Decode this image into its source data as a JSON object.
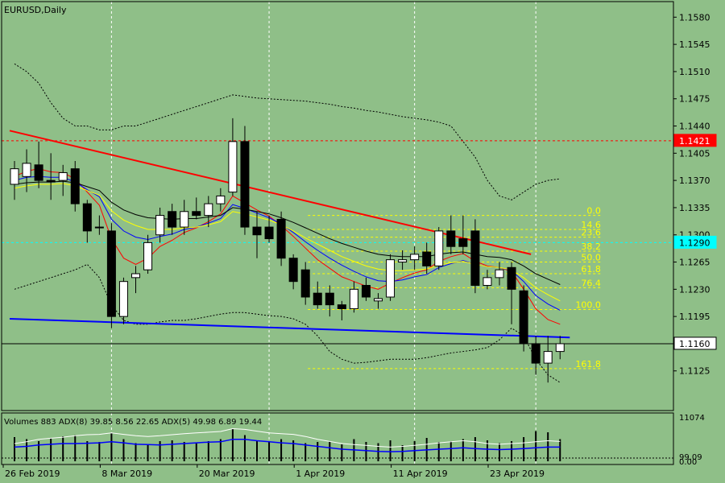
{
  "chart_data": {
    "type": "candlestick",
    "symbol_label": "EURUSD,Daily",
    "y_axis": {
      "ylim": [
        1.1074,
        1.16
      ],
      "tick_labels": [
        "1.1580",
        "1.1545",
        "1.1510",
        "1.1475",
        "1.1440",
        "1.1405",
        "1.1370",
        "1.1335",
        "1.1300",
        "1.1265",
        "1.1230",
        "1.1195",
        "1.1160",
        "1.1125"
      ],
      "tick_values": [
        1.158,
        1.1545,
        1.151,
        1.1475,
        1.144,
        1.1405,
        1.137,
        1.1335,
        1.13,
        1.1265,
        1.123,
        1.1195,
        1.116,
        1.1125
      ]
    },
    "x_axis": {
      "date_labels": [
        "26 Feb 2019",
        "8 Mar 2019",
        "20 Mar 2019",
        "1 Apr 2019",
        "11 Apr 2019",
        "23 Apr 2019"
      ],
      "label_bar_index": [
        0,
        8,
        16,
        24,
        32,
        40
      ]
    },
    "price_markers": [
      {
        "label": "1.1421",
        "value": 1.1421,
        "color": "#ff0000",
        "text_color": "#ffffff"
      },
      {
        "label": "1.1290",
        "value": 1.129,
        "color": "#00ffff",
        "text_color": "#000000"
      },
      {
        "label": "1.1160",
        "value": 1.116,
        "color": "#ffffff",
        "text_color": "#000000"
      }
    ],
    "candles": [
      {
        "date": "2019-02-25",
        "o": 1.1365,
        "h": 1.1395,
        "l": 1.1345,
        "c": 1.1385
      },
      {
        "date": "2019-02-26",
        "o": 1.1375,
        "h": 1.141,
        "l": 1.1355,
        "c": 1.1392
      },
      {
        "date": "2019-02-27",
        "o": 1.139,
        "h": 1.142,
        "l": 1.136,
        "c": 1.137
      },
      {
        "date": "2019-02-28",
        "o": 1.137,
        "h": 1.1405,
        "l": 1.1345,
        "c": 1.1368
      },
      {
        "date": "2019-03-01",
        "o": 1.137,
        "h": 1.139,
        "l": 1.135,
        "c": 1.138
      },
      {
        "date": "2019-03-04",
        "o": 1.1385,
        "h": 1.1395,
        "l": 1.133,
        "c": 1.134
      },
      {
        "date": "2019-03-05",
        "o": 1.134,
        "h": 1.1345,
        "l": 1.129,
        "c": 1.1305
      },
      {
        "date": "2019-03-06",
        "o": 1.131,
        "h": 1.1325,
        "l": 1.13,
        "c": 1.131
      },
      {
        "date": "2019-03-07",
        "o": 1.1305,
        "h": 1.1315,
        "l": 1.118,
        "c": 1.1195
      },
      {
        "date": "2019-03-08",
        "o": 1.1195,
        "h": 1.1245,
        "l": 1.1185,
        "c": 1.124
      },
      {
        "date": "2019-03-11",
        "o": 1.1245,
        "h": 1.126,
        "l": 1.1225,
        "c": 1.125
      },
      {
        "date": "2019-03-12",
        "o": 1.1255,
        "h": 1.13,
        "l": 1.125,
        "c": 1.129
      },
      {
        "date": "2019-03-13",
        "o": 1.13,
        "h": 1.1335,
        "l": 1.129,
        "c": 1.1325
      },
      {
        "date": "2019-03-14",
        "o": 1.133,
        "h": 1.134,
        "l": 1.13,
        "c": 1.131
      },
      {
        "date": "2019-03-15",
        "o": 1.131,
        "h": 1.1345,
        "l": 1.13,
        "c": 1.133
      },
      {
        "date": "2019-03-18",
        "o": 1.133,
        "h": 1.1348,
        "l": 1.132,
        "c": 1.1325
      },
      {
        "date": "2019-03-19",
        "o": 1.1325,
        "h": 1.135,
        "l": 1.131,
        "c": 1.134
      },
      {
        "date": "2019-03-20",
        "o": 1.134,
        "h": 1.136,
        "l": 1.133,
        "c": 1.135
      },
      {
        "date": "2019-03-21",
        "o": 1.1355,
        "h": 1.145,
        "l": 1.135,
        "c": 1.142
      },
      {
        "date": "2019-03-22",
        "o": 1.142,
        "h": 1.144,
        "l": 1.13,
        "c": 1.131
      },
      {
        "date": "2019-03-25",
        "o": 1.131,
        "h": 1.133,
        "l": 1.127,
        "c": 1.13
      },
      {
        "date": "2019-03-26",
        "o": 1.131,
        "h": 1.1325,
        "l": 1.129,
        "c": 1.1295
      },
      {
        "date": "2019-03-27",
        "o": 1.132,
        "h": 1.133,
        "l": 1.126,
        "c": 1.127
      },
      {
        "date": "2019-03-28",
        "o": 1.127,
        "h": 1.1275,
        "l": 1.123,
        "c": 1.124
      },
      {
        "date": "2019-03-29",
        "o": 1.1255,
        "h": 1.1265,
        "l": 1.121,
        "c": 1.122
      },
      {
        "date": "2019-04-01",
        "o": 1.1225,
        "h": 1.124,
        "l": 1.1205,
        "c": 1.121
      },
      {
        "date": "2019-04-02",
        "o": 1.1225,
        "h": 1.1235,
        "l": 1.1195,
        "c": 1.121
      },
      {
        "date": "2019-04-03",
        "o": 1.121,
        "h": 1.1215,
        "l": 1.119,
        "c": 1.1205
      },
      {
        "date": "2019-04-04",
        "o": 1.1205,
        "h": 1.124,
        "l": 1.12,
        "c": 1.123
      },
      {
        "date": "2019-04-05",
        "o": 1.1235,
        "h": 1.1245,
        "l": 1.1215,
        "c": 1.122
      },
      {
        "date": "2019-04-08",
        "o": 1.1215,
        "h": 1.1225,
        "l": 1.1205,
        "c": 1.1218
      },
      {
        "date": "2019-04-09",
        "o": 1.122,
        "h": 1.1275,
        "l": 1.1215,
        "c": 1.1268
      },
      {
        "date": "2019-04-10",
        "o": 1.1265,
        "h": 1.128,
        "l": 1.1255,
        "c": 1.1268
      },
      {
        "date": "2019-04-11",
        "o": 1.1268,
        "h": 1.1285,
        "l": 1.1255,
        "c": 1.1275
      },
      {
        "date": "2019-04-12",
        "o": 1.1278,
        "h": 1.129,
        "l": 1.125,
        "c": 1.126
      },
      {
        "date": "2019-04-15",
        "o": 1.126,
        "h": 1.131,
        "l": 1.1255,
        "c": 1.1305
      },
      {
        "date": "2019-04-16",
        "o": 1.1305,
        "h": 1.1325,
        "l": 1.1275,
        "c": 1.1285
      },
      {
        "date": "2019-04-17",
        "o": 1.1295,
        "h": 1.1325,
        "l": 1.1275,
        "c": 1.1285
      },
      {
        "date": "2019-04-18",
        "o": 1.1305,
        "h": 1.132,
        "l": 1.1225,
        "c": 1.1235
      },
      {
        "date": "2019-04-19",
        "o": 1.1235,
        "h": 1.1255,
        "l": 1.123,
        "c": 1.1245
      },
      {
        "date": "2019-04-22",
        "o": 1.1245,
        "h": 1.1265,
        "l": 1.1235,
        "c": 1.1255
      },
      {
        "date": "2019-04-23",
        "o": 1.1258,
        "h": 1.1265,
        "l": 1.1185,
        "c": 1.123
      },
      {
        "date": "2019-04-24",
        "o": 1.1228,
        "h": 1.1235,
        "l": 1.115,
        "c": 1.116
      },
      {
        "date": "2019-04-25",
        "o": 1.116,
        "h": 1.117,
        "l": 1.112,
        "c": 1.1135
      },
      {
        "date": "2019-04-26",
        "o": 1.1135,
        "h": 1.117,
        "l": 1.111,
        "c": 1.115
      },
      {
        "date": "2019-04-29",
        "o": 1.115,
        "h": 1.117,
        "l": 1.114,
        "c": 1.116
      }
    ],
    "moving_averages": [
      {
        "color": "#ff0000",
        "values": [
          1.1375,
          1.1382,
          1.1385,
          1.1381,
          1.138,
          1.1372,
          1.1355,
          1.1338,
          1.1295,
          1.127,
          1.1262,
          1.127,
          1.1285,
          1.1293,
          1.1303,
          1.1309,
          1.1317,
          1.1327,
          1.135,
          1.1341,
          1.1332,
          1.1324,
          1.1312,
          1.1298,
          1.1283,
          1.1268,
          1.1257,
          1.1246,
          1.124,
          1.1234,
          1.123,
          1.1238,
          1.1245,
          1.1251,
          1.1255,
          1.1266,
          1.1272,
          1.1276,
          1.1266,
          1.126,
          1.1258,
          1.1253,
          1.123,
          1.1205,
          1.1191,
          1.1185
        ]
      },
      {
        "color": "#0000ff",
        "values": [
          1.137,
          1.1374,
          1.1375,
          1.1374,
          1.1374,
          1.1368,
          1.1358,
          1.1349,
          1.132,
          1.1305,
          1.1297,
          1.1294,
          1.1298,
          1.1301,
          1.1307,
          1.131,
          1.1315,
          1.1321,
          1.1339,
          1.1334,
          1.1328,
          1.1322,
          1.1314,
          1.1303,
          1.1291,
          1.128,
          1.127,
          1.1261,
          1.1253,
          1.1246,
          1.1241,
          1.124,
          1.1242,
          1.1246,
          1.1249,
          1.1258,
          1.1263,
          1.1267,
          1.1262,
          1.1259,
          1.1258,
          1.1254,
          1.124,
          1.1222,
          1.1211,
          1.1203
        ]
      },
      {
        "color": "#ffff00",
        "values": [
          1.136,
          1.1363,
          1.1365,
          1.1365,
          1.1366,
          1.1363,
          1.1357,
          1.1351,
          1.1331,
          1.1319,
          1.1312,
          1.1307,
          1.1307,
          1.1307,
          1.1309,
          1.131,
          1.1313,
          1.1317,
          1.133,
          1.1327,
          1.1323,
          1.1319,
          1.1313,
          1.1305,
          1.1296,
          1.1288,
          1.128,
          1.1272,
          1.1266,
          1.126,
          1.1256,
          1.1254,
          1.1254,
          1.1255,
          1.1256,
          1.1261,
          1.1264,
          1.1266,
          1.1262,
          1.1259,
          1.1258,
          1.1255,
          1.1245,
          1.1232,
          1.1223,
          1.1215
        ]
      },
      {
        "color": "#000000",
        "values": [
          1.1365,
          1.1367,
          1.1368,
          1.1368,
          1.1369,
          1.1367,
          1.1362,
          1.1357,
          1.1342,
          1.1332,
          1.1326,
          1.1322,
          1.1321,
          1.132,
          1.1321,
          1.1321,
          1.1323,
          1.1325,
          1.1335,
          1.1333,
          1.133,
          1.1327,
          1.1322,
          1.1316,
          1.1309,
          1.1302,
          1.1295,
          1.1289,
          1.1284,
          1.1279,
          1.1275,
          1.1273,
          1.1272,
          1.1272,
          1.1272,
          1.1275,
          1.1277,
          1.1278,
          1.1275,
          1.1272,
          1.1271,
          1.1268,
          1.126,
          1.125,
          1.1243,
          1.1236
        ]
      }
    ],
    "bollinger": {
      "upper": [
        1.152,
        1.151,
        1.1495,
        1.147,
        1.145,
        1.144,
        1.144,
        1.1435,
        1.1435,
        1.144,
        1.144,
        1.1445,
        1.145,
        1.1455,
        1.146,
        1.1465,
        1.147,
        1.1475,
        1.148,
        1.1478,
        1.1476,
        1.1475,
        1.1474,
        1.1473,
        1.1472,
        1.147,
        1.1468,
        1.1465,
        1.1463,
        1.146,
        1.1458,
        1.1455,
        1.1452,
        1.145,
        1.1448,
        1.1445,
        1.144,
        1.142,
        1.14,
        1.137,
        1.135,
        1.1345,
        1.1355,
        1.1365,
        1.137,
        1.1372
      ],
      "lower": [
        1.123,
        1.1235,
        1.124,
        1.1245,
        1.125,
        1.1255,
        1.1262,
        1.1245,
        1.121,
        1.119,
        1.1185,
        1.1185,
        1.1188,
        1.119,
        1.119,
        1.1192,
        1.1195,
        1.1198,
        1.12,
        1.12,
        1.1198,
        1.1196,
        1.1195,
        1.1192,
        1.1185,
        1.117,
        1.115,
        1.114,
        1.1135,
        1.1136,
        1.1138,
        1.114,
        1.114,
        1.114,
        1.1142,
        1.1145,
        1.1148,
        1.115,
        1.1152,
        1.1155,
        1.1165,
        1.118,
        1.117,
        1.114,
        1.112,
        1.111
      ]
    },
    "trendlines": [
      {
        "color": "#ff0000",
        "from": {
          "bar": -0.4,
          "value": 1.1434
        },
        "to": {
          "bar": 42.6,
          "value": 1.1275
        }
      },
      {
        "color": "#0000ff",
        "from": {
          "bar": -0.4,
          "value": 1.1192
        },
        "to": {
          "bar": 45.8,
          "value": 1.1168
        }
      }
    ],
    "fibonacci": {
      "levels": [
        {
          "label": "0.0",
          "value": 1.1325
        },
        {
          "label": "14.6",
          "value": 1.1307
        },
        {
          "label": "23.6",
          "value": 1.1297
        },
        {
          "label": "38.2",
          "value": 1.1279
        },
        {
          "label": "50.0",
          "value": 1.1265
        },
        {
          "label": "61.8",
          "value": 1.125
        },
        {
          "label": "76.4",
          "value": 1.1232
        },
        {
          "label": "100.0",
          "value": 1.1204
        },
        {
          "label": "161.8",
          "value": 1.1128
        }
      ],
      "from_bar": 24.2,
      "to_bar": 48.5,
      "color": "#ffff00"
    },
    "horizontal_lines": [
      {
        "value": 1.1421,
        "color": "#ff0000",
        "style": "dashed"
      },
      {
        "value": 1.129,
        "color": "#00ffff",
        "style": "dashed"
      },
      {
        "value": 1.116,
        "color": "#000000",
        "style": "solid"
      }
    ],
    "vertical_grid_bars": [
      8,
      21,
      33,
      43
    ],
    "indicator": {
      "header": "Volumes 883 ADX(8) 39.85 8.56 22.65 ADX(5) 49.98 6.89 19.44",
      "tick_labels": [
        "11074",
        "99.09",
        "0.00"
      ],
      "tick_values": [
        11074,
        99.09,
        0
      ],
      "volumes": [
        60,
        55,
        50,
        58,
        62,
        65,
        50,
        48,
        70,
        55,
        45,
        40,
        50,
        52,
        48,
        45,
        50,
        55,
        80,
        65,
        50,
        48,
        55,
        52,
        45,
        48,
        50,
        42,
        55,
        48,
        45,
        52,
        40,
        50,
        58,
        48,
        50,
        55,
        60,
        52,
        45,
        50,
        60,
        75,
        72,
        55
      ],
      "adx_white": [
        50,
        55,
        62,
        65,
        68,
        72,
        75,
        76,
        80,
        76,
        72,
        70,
        72,
        75,
        78,
        80,
        82,
        84,
        92,
        90,
        85,
        80,
        78,
        76,
        70,
        62,
        56,
        50,
        47,
        45,
        42,
        40,
        42,
        45,
        48,
        52,
        55,
        58,
        55,
        50,
        48,
        50,
        52,
        55,
        58,
        56
      ],
      "adx_blue": [
        40,
        42,
        46,
        48,
        50,
        50,
        51,
        52,
        55,
        52,
        48,
        47,
        46,
        48,
        50,
        52,
        54,
        55,
        62,
        62,
        58,
        55,
        52,
        50,
        46,
        42,
        38,
        34,
        32,
        30,
        28,
        27,
        28,
        30,
        32,
        34,
        36,
        38,
        36,
        34,
        33,
        34,
        36,
        38,
        40,
        40
      ]
    }
  }
}
